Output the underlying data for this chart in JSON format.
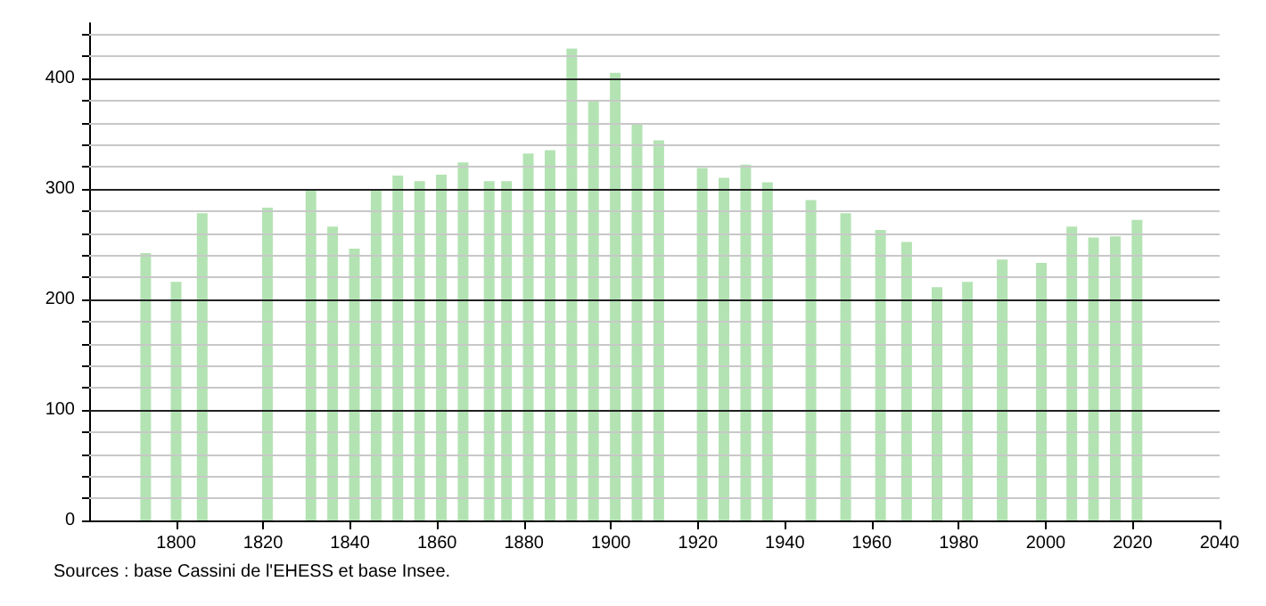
{
  "chart_data": {
    "type": "bar",
    "color": "#b3e3b3",
    "x": [
      1793,
      1800,
      1806,
      1821,
      1831,
      1836,
      1841,
      1846,
      1851,
      1856,
      1861,
      1866,
      1872,
      1876,
      1881,
      1886,
      1891,
      1896,
      1901,
      1906,
      1911,
      1921,
      1926,
      1931,
      1936,
      1946,
      1954,
      1962,
      1968,
      1975,
      1982,
      1990,
      1999,
      2006,
      2011,
      2016,
      2021
    ],
    "values": [
      242,
      216,
      278,
      283,
      300,
      266,
      246,
      300,
      312,
      307,
      313,
      324,
      307,
      307,
      332,
      335,
      427,
      379,
      405,
      359,
      344,
      319,
      310,
      322,
      306,
      290,
      278,
      263,
      252,
      211,
      216,
      236,
      233,
      266,
      256,
      257,
      272
    ],
    "xlim": [
      1780,
      2040
    ],
    "xticks": [
      1800,
      1820,
      1840,
      1860,
      1880,
      1900,
      1920,
      1940,
      1960,
      1980,
      2000,
      2020,
      2040
    ],
    "ylim": [
      0,
      450
    ],
    "yticks": [
      0,
      {
        "value": 20,
        "label": null
      },
      {
        "value": 40,
        "label": null
      },
      {
        "value": 60,
        "label": null
      },
      {
        "value": 80,
        "label": null
      },
      100,
      {
        "value": 120,
        "label": null
      },
      {
        "value": 140,
        "label": null
      },
      {
        "value": 160,
        "label": null
      },
      {
        "value": 180,
        "label": null
      },
      200,
      {
        "value": 220,
        "label": null
      },
      {
        "value": 240,
        "label": null
      },
      {
        "value": 260,
        "label": null
      },
      {
        "value": 280,
        "label": null
      },
      300,
      {
        "value": 320,
        "label": null
      },
      {
        "value": 340,
        "label": null
      },
      {
        "value": 360,
        "label": null
      },
      {
        "value": 380,
        "label": null
      },
      400,
      {
        "value": 420,
        "label": null
      },
      {
        "value": 440,
        "label": null
      }
    ],
    "grid": "y",
    "annotations": [
      "Sources : base Cassini de l'EHESS et base Insee."
    ]
  }
}
